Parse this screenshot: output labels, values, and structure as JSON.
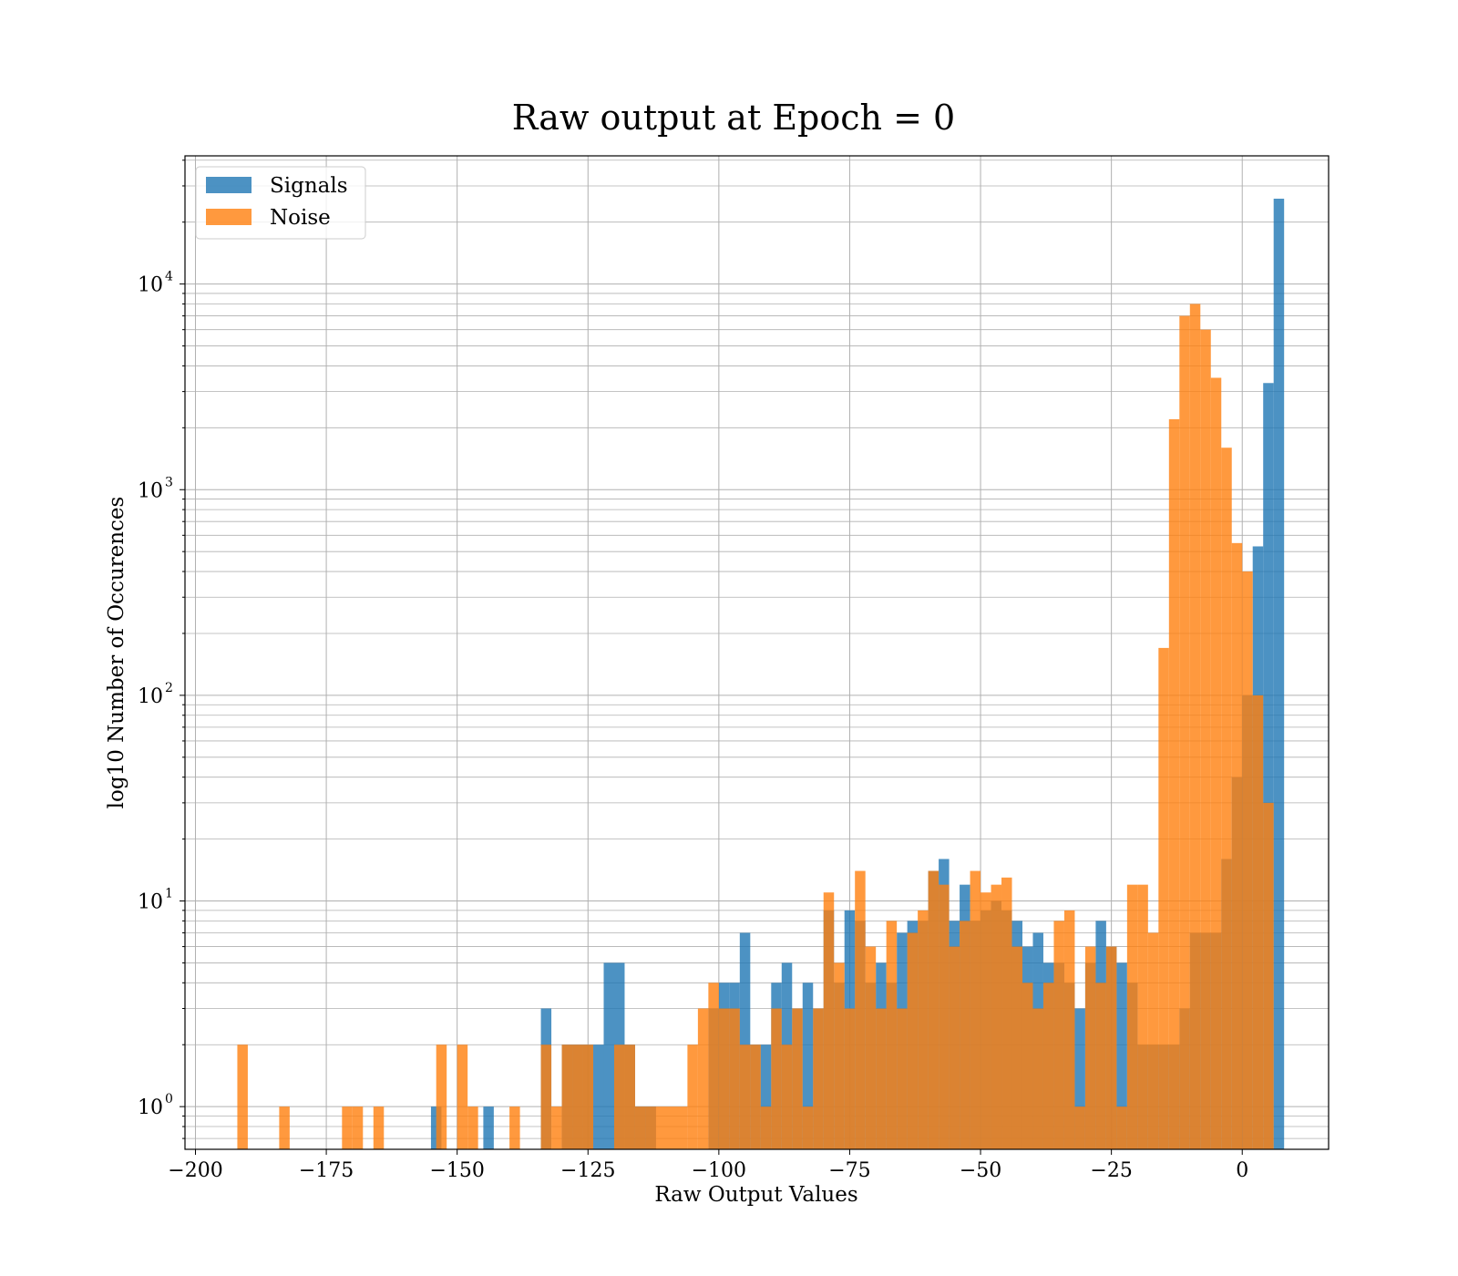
{
  "chart_data": {
    "type": "bar",
    "title": "Raw output at Epoch = 0",
    "xlabel": "Raw Output Values",
    "ylabel": "log10 Number of Occurences",
    "xlim": [
      -202,
      16.5
    ],
    "ylim": [
      0.62,
      42000
    ],
    "y_scale": "log",
    "grid": true,
    "legend_position": "upper-left",
    "x_ticks": [
      -200,
      -175,
      -150,
      -125,
      -100,
      -75,
      -50,
      -25,
      0
    ],
    "x_tick_labels": [
      "−200",
      "−175",
      "−150",
      "−125",
      "−100",
      "−75",
      "−50",
      "−25",
      "0"
    ],
    "y_ticks": [
      {
        "value": 1,
        "base": "10",
        "exp": "0"
      },
      {
        "value": 10,
        "base": "10",
        "exp": "1"
      },
      {
        "value": 100,
        "base": "10",
        "exp": "2"
      },
      {
        "value": 1000,
        "base": "10",
        "exp": "3"
      },
      {
        "value": 10000,
        "base": "10",
        "exp": "4"
      }
    ],
    "series": [
      {
        "name": "Signals",
        "color": "#1f77b4",
        "opacity": 0.8,
        "bins": [
          [
            -155,
            -153,
            1
          ],
          [
            -134,
            -132,
            3
          ],
          [
            -145,
            -143,
            1
          ],
          [
            -130,
            -128,
            2
          ],
          [
            -128,
            -126,
            2
          ],
          [
            -126,
            -124,
            2
          ],
          [
            -124,
            -122,
            2
          ],
          [
            -122,
            -118,
            5
          ],
          [
            -118,
            -116,
            2
          ],
          [
            -116,
            -114,
            1
          ],
          [
            -114,
            -112,
            1
          ],
          [
            -102,
            -100,
            3
          ],
          [
            -100,
            -98,
            4
          ],
          [
            -98,
            -96,
            4
          ],
          [
            -96,
            -94,
            7
          ],
          [
            -94,
            -92,
            2
          ],
          [
            -92,
            -90,
            2
          ],
          [
            -90,
            -88,
            4
          ],
          [
            -88,
            -86,
            5
          ],
          [
            -86,
            -84,
            3
          ],
          [
            -84,
            -82,
            4
          ],
          [
            -82,
            -80,
            3
          ],
          [
            -80,
            -78,
            9
          ],
          [
            -78,
            -76,
            4
          ],
          [
            -76,
            -74,
            9
          ],
          [
            -74,
            -72,
            8
          ],
          [
            -72,
            -70,
            4
          ],
          [
            -70,
            -68,
            5
          ],
          [
            -68,
            -66,
            4
          ],
          [
            -66,
            -64,
            7
          ],
          [
            -64,
            -62,
            8
          ],
          [
            -62,
            -60,
            8
          ],
          [
            -60,
            -58,
            14
          ],
          [
            -58,
            -56,
            16
          ],
          [
            -56,
            -54,
            8
          ],
          [
            -54,
            -52,
            12
          ],
          [
            -52,
            -50,
            8
          ],
          [
            -50,
            -48,
            9
          ],
          [
            -48,
            -46,
            10
          ],
          [
            -46,
            -44,
            9
          ],
          [
            -44,
            -42,
            8
          ],
          [
            -42,
            -40,
            6
          ],
          [
            -40,
            -38,
            7
          ],
          [
            -38,
            -36,
            5
          ],
          [
            -36,
            -34,
            5
          ],
          [
            -34,
            -32,
            4
          ],
          [
            -32,
            -30,
            3
          ],
          [
            -30,
            -28,
            5
          ],
          [
            -28,
            -26,
            8
          ],
          [
            -26,
            -24,
            6
          ],
          [
            -24,
            -22,
            5
          ],
          [
            -22,
            -20,
            4
          ],
          [
            -20,
            -18,
            2
          ],
          [
            -18,
            -16,
            2
          ],
          [
            -16,
            -14,
            2
          ],
          [
            -14,
            -12,
            2
          ],
          [
            -12,
            -10,
            3
          ],
          [
            -10,
            -8,
            7
          ],
          [
            -8,
            -6,
            7
          ],
          [
            -6,
            -4,
            7
          ],
          [
            -4,
            -2,
            16
          ],
          [
            -2,
            0,
            40
          ],
          [
            0,
            2,
            100
          ],
          [
            2,
            4,
            530
          ],
          [
            4,
            6,
            3300
          ],
          [
            6,
            8,
            26000
          ]
        ]
      },
      {
        "name": "Noise",
        "color": "#ff7f0e",
        "opacity": 0.8,
        "bins": [
          [
            -192,
            -190,
            2
          ],
          [
            -184,
            -182,
            1
          ],
          [
            -172,
            -170,
            1
          ],
          [
            -170,
            -168,
            1
          ],
          [
            -166,
            -164,
            1
          ],
          [
            -154,
            -152,
            2
          ],
          [
            -150,
            -148,
            2
          ],
          [
            -148,
            -146,
            1
          ],
          [
            -140,
            -138,
            1
          ],
          [
            -134,
            -132,
            2
          ],
          [
            -132,
            -130,
            1
          ],
          [
            -130,
            -128,
            2
          ],
          [
            -128,
            -126,
            2
          ],
          [
            -126,
            -124,
            2
          ],
          [
            -120,
            -116,
            2
          ],
          [
            -116,
            -114,
            1
          ],
          [
            -114,
            -106,
            1
          ],
          [
            -106,
            -104,
            2
          ],
          [
            -104,
            -102,
            3
          ],
          [
            -102,
            -100,
            4
          ],
          [
            -100,
            -98,
            3
          ],
          [
            -98,
            -96,
            3
          ],
          [
            -96,
            -94,
            2
          ],
          [
            -94,
            -92,
            2
          ],
          [
            -92,
            -90,
            1
          ],
          [
            -90,
            -88,
            3
          ],
          [
            -88,
            -86,
            2
          ],
          [
            -86,
            -84,
            3
          ],
          [
            -84,
            -82,
            1
          ],
          [
            -82,
            -80,
            3
          ],
          [
            -80,
            -78,
            11
          ],
          [
            -78,
            -76,
            5
          ],
          [
            -76,
            -74,
            3
          ],
          [
            -74,
            -72,
            14
          ],
          [
            -72,
            -70,
            6
          ],
          [
            -70,
            -68,
            3
          ],
          [
            -68,
            -66,
            8
          ],
          [
            -66,
            -64,
            3
          ],
          [
            -64,
            -62,
            7
          ],
          [
            -62,
            -60,
            9
          ],
          [
            -60,
            -58,
            14
          ],
          [
            -58,
            -56,
            12
          ],
          [
            -56,
            -54,
            6
          ],
          [
            -54,
            -52,
            8
          ],
          [
            -52,
            -50,
            14
          ],
          [
            -50,
            -48,
            11
          ],
          [
            -48,
            -46,
            12
          ],
          [
            -46,
            -44,
            13
          ],
          [
            -44,
            -42,
            6
          ],
          [
            -42,
            -40,
            4
          ],
          [
            -40,
            -38,
            3
          ],
          [
            -38,
            -36,
            4
          ],
          [
            -36,
            -34,
            8
          ],
          [
            -34,
            -32,
            9
          ],
          [
            -32,
            -30,
            1
          ],
          [
            -30,
            -28,
            6
          ],
          [
            -28,
            -26,
            4
          ],
          [
            -26,
            -24,
            6
          ],
          [
            -24,
            -22,
            1
          ],
          [
            -22,
            -20,
            12
          ],
          [
            -20,
            -18,
            12
          ],
          [
            -18,
            -16,
            7
          ],
          [
            -16,
            -14,
            170
          ],
          [
            -14,
            -12,
            2200
          ],
          [
            -12,
            -10,
            7000
          ],
          [
            -10,
            -8,
            8000
          ],
          [
            -8,
            -6,
            6000
          ],
          [
            -6,
            -4,
            3500
          ],
          [
            -4,
            -2,
            1600
          ],
          [
            -2,
            0,
            550
          ],
          [
            0,
            2,
            400
          ],
          [
            2,
            4,
            100
          ],
          [
            4,
            6,
            30
          ]
        ]
      }
    ]
  }
}
